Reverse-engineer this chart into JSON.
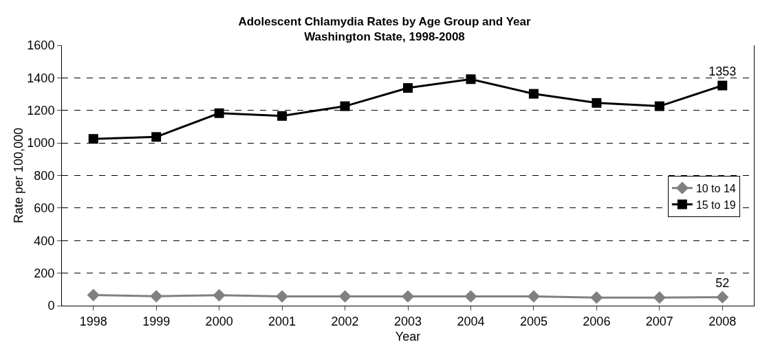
{
  "chart_data": {
    "type": "line",
    "title": "Adolescent Chlamydia Rates by Age Group and Year\nWashington State, 1998-2008",
    "xlabel": "Year",
    "ylabel": "Rate per 100,000",
    "categories": [
      "1998",
      "1999",
      "2000",
      "2001",
      "2002",
      "2003",
      "2004",
      "2005",
      "2006",
      "2007",
      "2008"
    ],
    "series": [
      {
        "name": "10 to 14",
        "color": "#808080",
        "marker": "diamond",
        "values": [
          65,
          58,
          64,
          57,
          57,
          57,
          57,
          57,
          50,
          50,
          52
        ],
        "value_labels": [
          null,
          null,
          null,
          null,
          null,
          null,
          null,
          null,
          null,
          null,
          "52"
        ]
      },
      {
        "name": "15 to 19",
        "color": "#000000",
        "marker": "square",
        "values": [
          1025,
          1037,
          1183,
          1166,
          1226,
          1338,
          1392,
          1302,
          1246,
          1226,
          1353
        ],
        "value_labels": [
          null,
          null,
          null,
          null,
          null,
          null,
          null,
          null,
          null,
          null,
          "1353"
        ]
      }
    ],
    "ylim": [
      0,
      1600
    ],
    "yticks": [
      0,
      200,
      400,
      600,
      800,
      1000,
      1200,
      1400,
      1600
    ],
    "grid": "y",
    "legend": "right",
    "line_style": "solid"
  }
}
